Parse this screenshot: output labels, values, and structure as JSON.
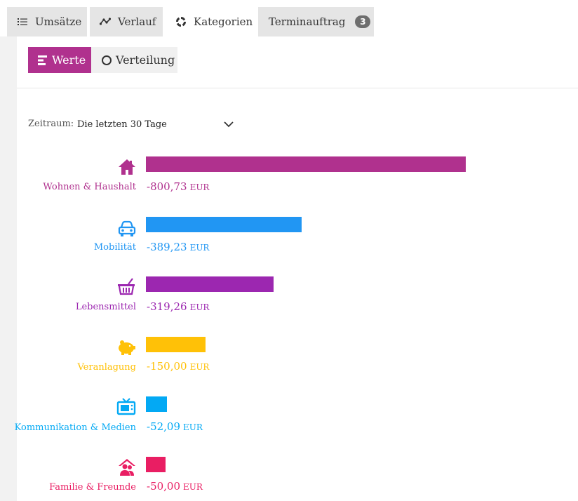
{
  "tabs": [
    {
      "label": "Umsätze",
      "icon": "list-icon"
    },
    {
      "label": "Verlauf",
      "icon": "line-chart-icon"
    },
    {
      "label": "Kategorien",
      "icon": "donut-icon"
    },
    {
      "label": "Terminauftrag",
      "icon": "",
      "badge": "3"
    }
  ],
  "active_tab": "Kategorien",
  "view_toggle": {
    "werte_label": "Werte",
    "verteilung_label": "Verteilung",
    "selected": "Werte"
  },
  "period": {
    "label": "Zeitraum:",
    "value": "Die letzten 30 Tage"
  },
  "currency": "EUR",
  "categories": [
    {
      "name": "Wohnen & Haushalt",
      "amount": "-800,73",
      "value": 800.73,
      "color": "#b0318e",
      "icon": "house-icon"
    },
    {
      "name": "Mobilität",
      "amount": "-389,23",
      "value": 389.23,
      "color": "#2196f3",
      "icon": "car-icon"
    },
    {
      "name": "Lebensmittel",
      "amount": "-319,26",
      "value": 319.26,
      "color": "#9c27b0",
      "icon": "basket-icon"
    },
    {
      "name": "Veranlagung",
      "amount": "-150,00",
      "value": 150.0,
      "color": "#ffc107",
      "icon": "piggy-bank-icon"
    },
    {
      "name": "Kommunikation & Medien",
      "amount": "-52,09",
      "value": 52.09,
      "color": "#03a9f4",
      "icon": "tv-icon"
    },
    {
      "name": "Familie & Freunde",
      "amount": "-50,00",
      "value": 50.0,
      "color": "#e91e63",
      "icon": "family-icon"
    }
  ],
  "colors": {
    "accent": "#b0318e",
    "tab_inactive_bg": "#e5e5e5",
    "badge_bg": "#6e6e6e"
  }
}
